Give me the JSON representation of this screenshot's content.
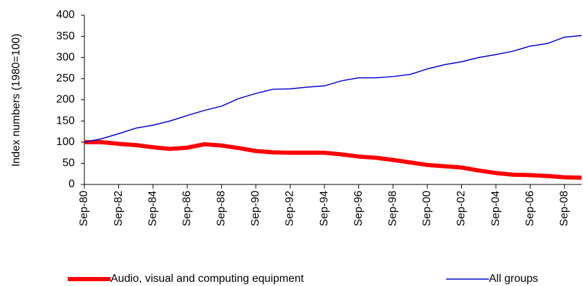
{
  "chart_data": {
    "type": "line",
    "y_label": "Index numbers (1980=100)",
    "categories": [
      "Sep-80",
      null,
      "Sep-82",
      null,
      "Sep-84",
      null,
      "Sep-86",
      null,
      "Sep-88",
      null,
      "Sep-90",
      null,
      "Sep-92",
      null,
      "Sep-94",
      null,
      "Sep-96",
      null,
      "Sep-98",
      null,
      "Sep-00",
      null,
      "Sep-02",
      null,
      "Sep-04",
      null,
      "Sep-06",
      null,
      "Sep-08",
      null
    ],
    "series": [
      {
        "name": "Audio, visual and computing equipment",
        "color": "#ff0000",
        "width": 6,
        "values": [
          100,
          100,
          96,
          93,
          88,
          84,
          87,
          95,
          92,
          86,
          79,
          76,
          75,
          75,
          75,
          71,
          66,
          63,
          58,
          52,
          46,
          43,
          40,
          33,
          27,
          23,
          22,
          20,
          17,
          16
        ]
      },
      {
        "name": "All groups",
        "color": "#0000cc",
        "width": 1.5,
        "values": [
          100,
          108,
          120,
          133,
          140,
          150,
          163,
          175,
          185,
          203,
          215,
          225,
          226,
          230,
          233,
          245,
          252,
          252,
          255,
          260,
          273,
          283,
          290,
          300,
          307,
          315,
          327,
          333,
          348,
          352
        ]
      }
    ],
    "ylim": [
      0,
      400
    ],
    "yticks": [
      0,
      50,
      100,
      150,
      200,
      250,
      300,
      350,
      400
    ]
  }
}
